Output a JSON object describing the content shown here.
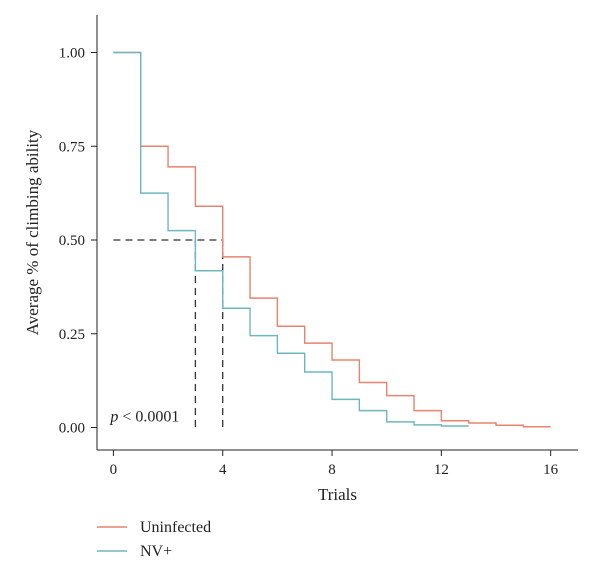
{
  "chart_data": {
    "type": "line",
    "step": true,
    "xlabel": "Trials",
    "ylabel": "Average % of climbing ability",
    "xlim": [
      -0.6,
      17
    ],
    "ylim": [
      -0.06,
      1.1
    ],
    "xticks": [
      0,
      4,
      8,
      12,
      16
    ],
    "yticks": [
      0.0,
      0.25,
      0.5,
      0.75,
      1.0
    ],
    "xtick_labels": [
      "0",
      "4",
      "8",
      "12",
      "16"
    ],
    "ytick_labels": [
      "0.00",
      "0.25",
      "0.50",
      "0.75",
      "1.00"
    ],
    "grid": false,
    "legend_placement": "bottom-left",
    "series": [
      {
        "name": "Uninfected",
        "color": "#e8836f",
        "x": [
          0,
          1,
          2,
          3,
          4,
          5,
          6,
          7,
          8,
          9,
          10,
          11,
          12,
          13,
          14,
          15,
          16
        ],
        "y": [
          1.0,
          0.75,
          0.695,
          0.59,
          0.455,
          0.345,
          0.27,
          0.225,
          0.18,
          0.12,
          0.085,
          0.045,
          0.018,
          0.012,
          0.006,
          0.002,
          0.002
        ]
      },
      {
        "name": "NV+",
        "color": "#6fb7bf",
        "x": [
          0,
          1,
          2,
          3,
          4,
          5,
          6,
          7,
          8,
          9,
          10,
          11,
          12,
          13
        ],
        "y": [
          1.0,
          0.625,
          0.525,
          0.418,
          0.318,
          0.245,
          0.198,
          0.148,
          0.075,
          0.045,
          0.015,
          0.007,
          0.004,
          0.004
        ]
      }
    ],
    "reference_lines": {
      "y": 0.5,
      "x": [
        3,
        4
      ],
      "style": "dashed",
      "color": "#333333"
    },
    "annotation": {
      "italic_part": "p",
      "rest": " < 0.0001"
    }
  }
}
